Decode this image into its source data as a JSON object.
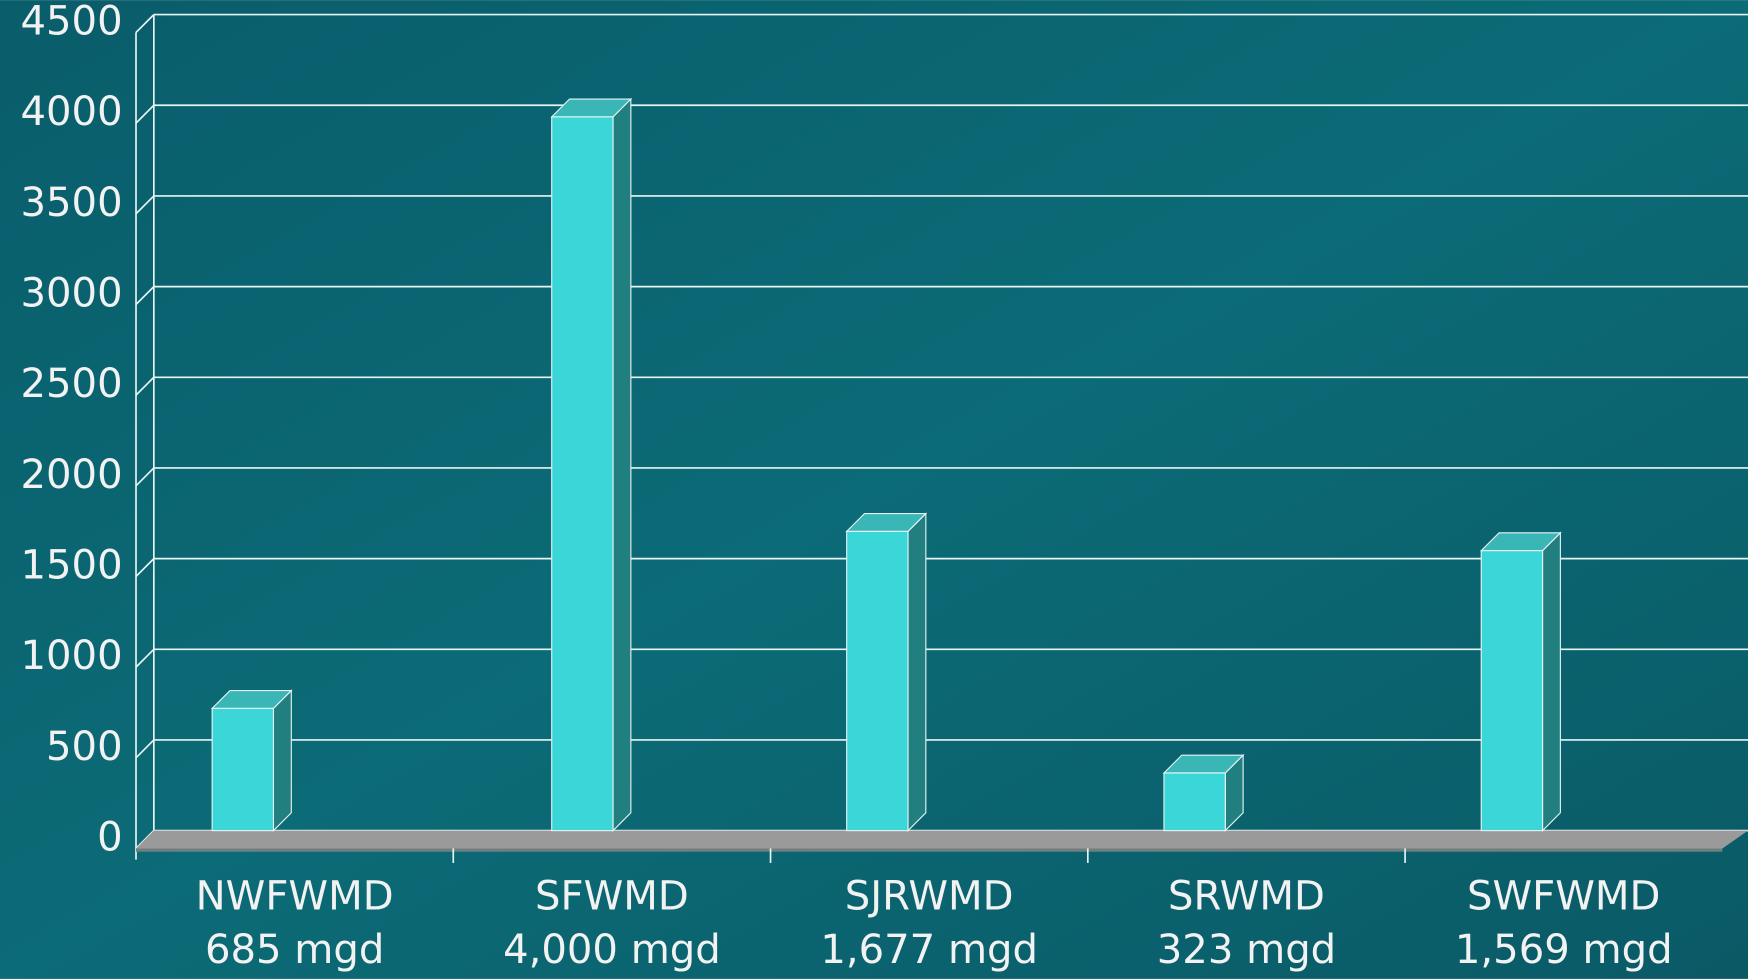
{
  "chart_data": {
    "type": "bar",
    "categories": [
      "NWFWMD",
      "SFWMD",
      "SJRWMD",
      "SRWMD",
      "SWFWMD"
    ],
    "values": [
      685,
      4000,
      1677,
      323,
      1569
    ],
    "value_labels": [
      "685 mgd",
      "4,000 mgd",
      "1,677 mgd",
      "323 mgd",
      "1,569 mgd"
    ],
    "color": "#3ad6d8",
    "ylim": [
      0,
      4500
    ],
    "yticks": [
      0,
      500,
      1000,
      1500,
      2000,
      2500,
      3000,
      3500,
      4000,
      4500
    ],
    "grid": true
  }
}
